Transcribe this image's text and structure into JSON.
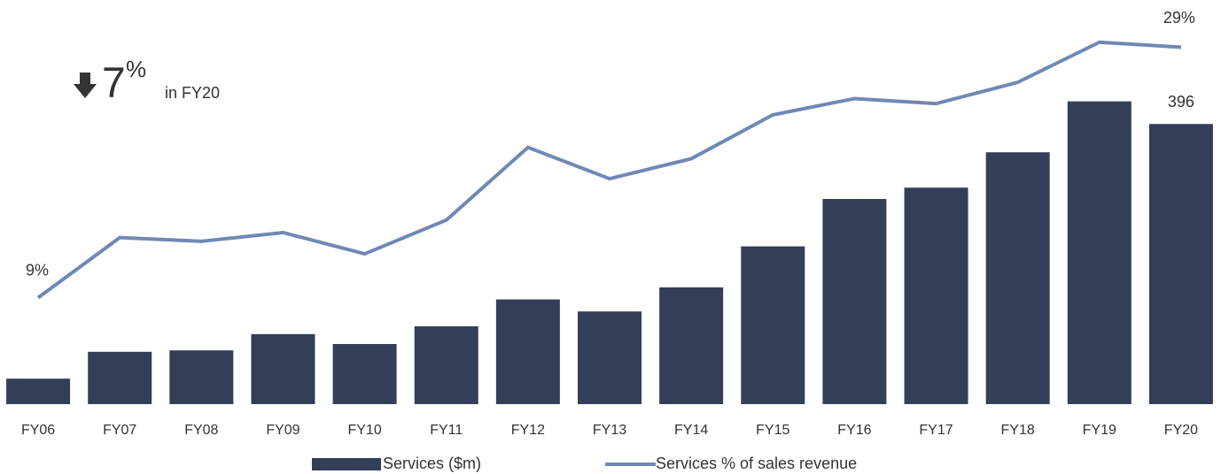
{
  "chart_data": {
    "type": "bar-line",
    "categories": [
      "FY06",
      "FY07",
      "FY08",
      "FY09",
      "FY10",
      "FY11",
      "FY12",
      "FY13",
      "FY14",
      "FY15",
      "FY16",
      "FY17",
      "FY18",
      "FY19",
      "FY20"
    ],
    "series": [
      {
        "name": "Services ($m)",
        "type": "bar",
        "color": "#333f59",
        "values": [
          36,
          74,
          76,
          99,
          85,
          110,
          148,
          131,
          165,
          223,
          290,
          306,
          356,
          428,
          396
        ],
        "value_labels": [
          null,
          null,
          null,
          null,
          null,
          null,
          null,
          null,
          null,
          null,
          null,
          null,
          null,
          null,
          "396"
        ]
      },
      {
        "name": "Services % of sales revenue",
        "type": "line",
        "axis": "y2",
        "color": "#7088b4",
        "values": [
          9,
          13.8,
          13.5,
          14.2,
          12.5,
          15.2,
          21.0,
          18.5,
          20.1,
          23.6,
          24.9,
          24.5,
          26.2,
          29.4,
          29
        ],
        "value_labels": [
          "9%",
          null,
          null,
          null,
          null,
          null,
          null,
          null,
          null,
          null,
          null,
          null,
          null,
          null,
          "29%"
        ]
      }
    ],
    "ylim": [
      0,
      570
    ],
    "y2lim": [
      0.5,
      32.7
    ],
    "legend": "bottom",
    "annotation": {
      "change": "7",
      "unit": "%",
      "period": "in FY20"
    }
  }
}
